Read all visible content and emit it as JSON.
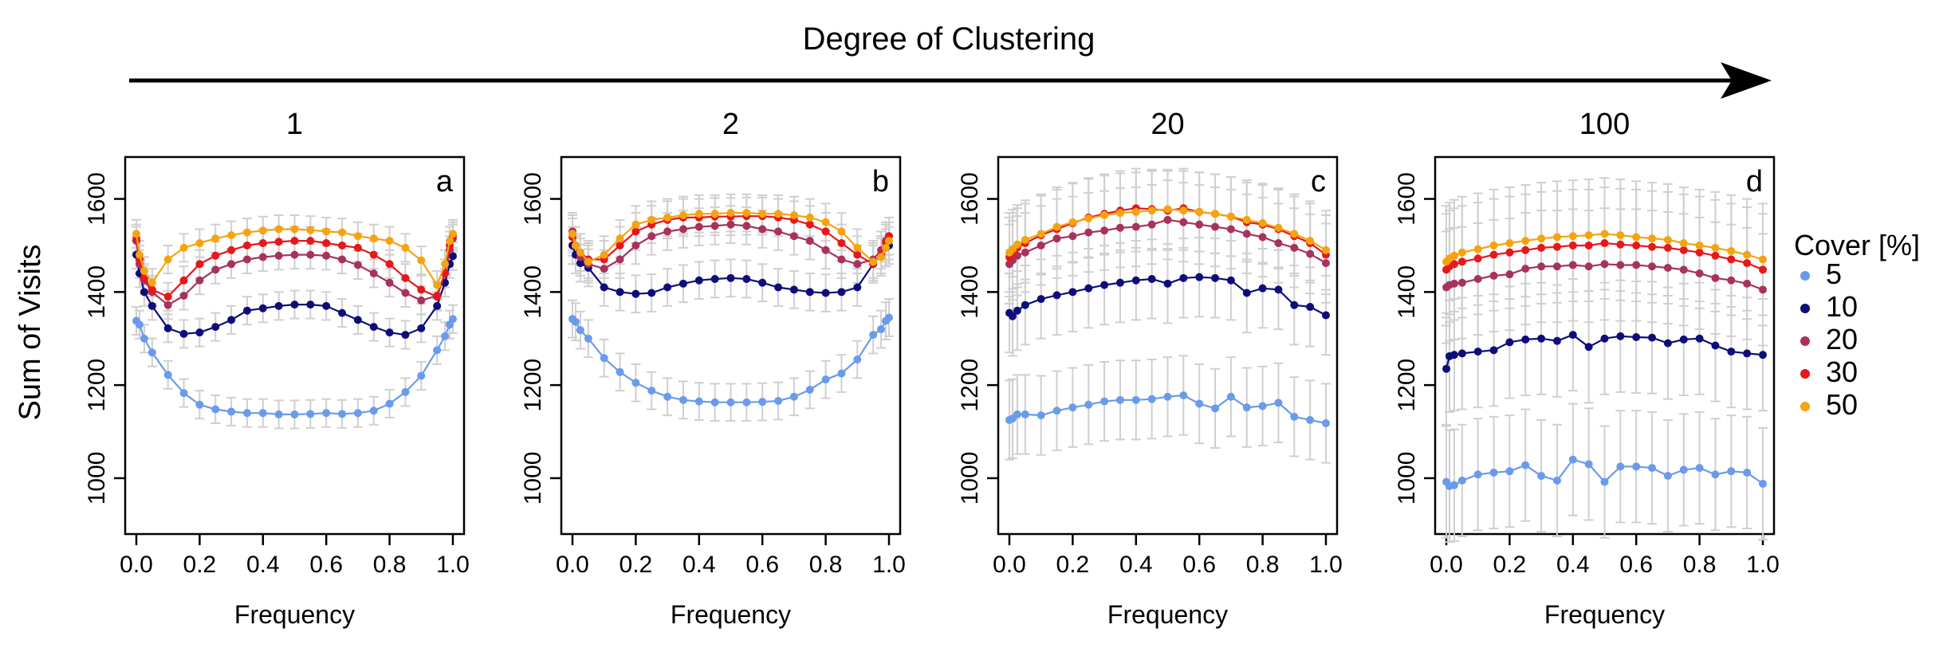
{
  "header": {
    "arrow_label": "Degree of Clustering"
  },
  "legend": {
    "title": "Cover [%]",
    "items": [
      {
        "label": "5",
        "color": "#6a9bea"
      },
      {
        "label": "10",
        "color": "#0d0d7a"
      },
      {
        "label": "20",
        "color": "#a8325e"
      },
      {
        "label": "30",
        "color": "#e8171b"
      },
      {
        "label": "50",
        "color": "#f5a30f"
      }
    ]
  },
  "chart_data": [
    {
      "type": "line",
      "panel_title": "1",
      "panel_letter": "a",
      "xlabel": "Frequency",
      "ylabel": "Sum of Visits",
      "xlim": [
        0,
        1
      ],
      "ylim": [
        880,
        1690
      ],
      "xticks": [
        0.0,
        0.2,
        0.4,
        0.6,
        0.8,
        1.0
      ],
      "yticks": [
        1000,
        1200,
        1400,
        1600
      ],
      "x": [
        0.0,
        0.01,
        0.025,
        0.05,
        0.1,
        0.15,
        0.2,
        0.25,
        0.3,
        0.35,
        0.4,
        0.45,
        0.5,
        0.55,
        0.6,
        0.65,
        0.7,
        0.75,
        0.8,
        0.85,
        0.9,
        0.95,
        0.975,
        0.99,
        1.0
      ],
      "error": 30,
      "series": [
        {
          "name": "5",
          "color": "#6a9bea",
          "values": [
            1338,
            1330,
            1300,
            1270,
            1222,
            1183,
            1158,
            1148,
            1143,
            1140,
            1140,
            1137,
            1137,
            1138,
            1140,
            1138,
            1140,
            1145,
            1160,
            1185,
            1220,
            1275,
            1305,
            1330,
            1342
          ]
        },
        {
          "name": "10",
          "color": "#0d0d7a",
          "values": [
            1480,
            1440,
            1400,
            1370,
            1322,
            1310,
            1313,
            1325,
            1340,
            1360,
            1365,
            1370,
            1373,
            1373,
            1370,
            1355,
            1340,
            1325,
            1313,
            1308,
            1322,
            1370,
            1420,
            1460,
            1477
          ]
        },
        {
          "name": "20",
          "color": "#a8325e",
          "values": [
            1510,
            1460,
            1425,
            1400,
            1372,
            1392,
            1425,
            1448,
            1460,
            1470,
            1475,
            1478,
            1480,
            1480,
            1478,
            1470,
            1458,
            1440,
            1420,
            1398,
            1382,
            1392,
            1440,
            1490,
            1515
          ]
        },
        {
          "name": "30",
          "color": "#e8171b",
          "values": [
            1515,
            1470,
            1430,
            1405,
            1390,
            1425,
            1460,
            1478,
            1490,
            1500,
            1505,
            1508,
            1510,
            1510,
            1505,
            1500,
            1495,
            1480,
            1460,
            1430,
            1405,
            1390,
            1440,
            1500,
            1520
          ]
        },
        {
          "name": "50",
          "color": "#f5a30f",
          "values": [
            1525,
            1480,
            1445,
            1420,
            1470,
            1495,
            1505,
            1515,
            1522,
            1528,
            1532,
            1535,
            1535,
            1533,
            1530,
            1528,
            1520,
            1515,
            1510,
            1495,
            1468,
            1415,
            1460,
            1510,
            1525
          ]
        }
      ]
    },
    {
      "type": "line",
      "panel_title": "2",
      "panel_letter": "b",
      "xlabel": "Frequency",
      "ylabel": "",
      "xlim": [
        0,
        1
      ],
      "ylim": [
        880,
        1690
      ],
      "xticks": [
        0.0,
        0.2,
        0.4,
        0.6,
        0.8,
        1.0
      ],
      "yticks": [
        1000,
        1200,
        1400,
        1600
      ],
      "x": [
        0.0,
        0.01,
        0.025,
        0.05,
        0.1,
        0.15,
        0.2,
        0.25,
        0.3,
        0.35,
        0.4,
        0.45,
        0.5,
        0.55,
        0.6,
        0.65,
        0.7,
        0.75,
        0.8,
        0.85,
        0.9,
        0.95,
        0.975,
        0.99,
        1.0
      ],
      "error": 40,
      "series": [
        {
          "name": "5",
          "color": "#6a9bea",
          "values": [
            1342,
            1336,
            1318,
            1300,
            1258,
            1228,
            1205,
            1188,
            1175,
            1168,
            1165,
            1163,
            1163,
            1163,
            1164,
            1166,
            1175,
            1190,
            1212,
            1225,
            1255,
            1308,
            1320,
            1338,
            1345
          ]
        },
        {
          "name": "10",
          "color": "#0d0d7a",
          "values": [
            1500,
            1480,
            1462,
            1452,
            1410,
            1400,
            1396,
            1398,
            1410,
            1418,
            1425,
            1428,
            1430,
            1428,
            1420,
            1410,
            1405,
            1400,
            1398,
            1400,
            1410,
            1460,
            1480,
            1495,
            1500
          ]
        },
        {
          "name": "20",
          "color": "#a8325e",
          "values": [
            1530,
            1500,
            1475,
            1460,
            1450,
            1470,
            1500,
            1520,
            1530,
            1535,
            1540,
            1542,
            1545,
            1542,
            1535,
            1530,
            1520,
            1510,
            1490,
            1470,
            1460,
            1470,
            1490,
            1510,
            1520
          ]
        },
        {
          "name": "30",
          "color": "#e8171b",
          "values": [
            1518,
            1500,
            1485,
            1470,
            1470,
            1500,
            1530,
            1545,
            1555,
            1560,
            1560,
            1562,
            1562,
            1563,
            1563,
            1560,
            1555,
            1545,
            1530,
            1505,
            1480,
            1460,
            1480,
            1505,
            1520
          ]
        },
        {
          "name": "50",
          "color": "#f5a30f",
          "values": [
            1525,
            1500,
            1485,
            1465,
            1480,
            1515,
            1545,
            1555,
            1560,
            1565,
            1568,
            1568,
            1570,
            1570,
            1568,
            1568,
            1565,
            1560,
            1550,
            1530,
            1495,
            1465,
            1475,
            1495,
            1510
          ]
        }
      ]
    },
    {
      "type": "line",
      "panel_title": "20",
      "panel_letter": "c",
      "xlabel": "Frequency",
      "ylabel": "",
      "xlim": [
        0,
        1
      ],
      "ylim": [
        880,
        1690
      ],
      "xticks": [
        0.0,
        0.2,
        0.4,
        0.6,
        0.8,
        1.0
      ],
      "yticks": [
        1000,
        1200,
        1400,
        1600
      ],
      "x": [
        0.0,
        0.01,
        0.025,
        0.05,
        0.1,
        0.15,
        0.2,
        0.25,
        0.3,
        0.35,
        0.4,
        0.45,
        0.5,
        0.55,
        0.6,
        0.65,
        0.7,
        0.75,
        0.8,
        0.85,
        0.9,
        0.95,
        1.0
      ],
      "error": 85,
      "series": [
        {
          "name": "5",
          "color": "#6a9bea",
          "values": [
            1125,
            1128,
            1137,
            1137,
            1135,
            1145,
            1152,
            1158,
            1165,
            1168,
            1168,
            1170,
            1175,
            1178,
            1160,
            1150,
            1175,
            1152,
            1155,
            1162,
            1132,
            1125,
            1118
          ]
        },
        {
          "name": "10",
          "color": "#0d0d7a",
          "values": [
            1355,
            1348,
            1360,
            1372,
            1385,
            1393,
            1400,
            1408,
            1415,
            1420,
            1425,
            1428,
            1418,
            1430,
            1432,
            1430,
            1425,
            1398,
            1408,
            1405,
            1372,
            1368,
            1350
          ]
        },
        {
          "name": "20",
          "color": "#a8325e",
          "values": [
            1460,
            1468,
            1478,
            1485,
            1500,
            1515,
            1520,
            1528,
            1532,
            1538,
            1540,
            1545,
            1555,
            1550,
            1545,
            1540,
            1535,
            1525,
            1518,
            1505,
            1495,
            1482,
            1462
          ]
        },
        {
          "name": "30",
          "color": "#e8171b",
          "values": [
            1475,
            1485,
            1495,
            1505,
            1522,
            1535,
            1548,
            1560,
            1568,
            1575,
            1580,
            1578,
            1575,
            1580,
            1572,
            1568,
            1562,
            1550,
            1545,
            1535,
            1520,
            1505,
            1480
          ]
        },
        {
          "name": "50",
          "color": "#f5a30f",
          "values": [
            1485,
            1492,
            1502,
            1512,
            1525,
            1540,
            1550,
            1558,
            1565,
            1570,
            1572,
            1575,
            1578,
            1575,
            1572,
            1568,
            1562,
            1555,
            1548,
            1538,
            1525,
            1510,
            1490
          ]
        }
      ]
    },
    {
      "type": "line",
      "panel_title": "100",
      "panel_letter": "d",
      "xlabel": "Frequency",
      "ylabel": "",
      "xlim": [
        0,
        1
      ],
      "ylim": [
        880,
        1690
      ],
      "xticks": [
        0.0,
        0.2,
        0.4,
        0.6,
        0.8,
        1.0
      ],
      "yticks": [
        1000,
        1200,
        1400,
        1600
      ],
      "x": [
        0.0,
        0.01,
        0.025,
        0.05,
        0.1,
        0.15,
        0.2,
        0.25,
        0.3,
        0.35,
        0.4,
        0.45,
        0.5,
        0.55,
        0.6,
        0.65,
        0.7,
        0.75,
        0.8,
        0.85,
        0.9,
        0.95,
        1.0
      ],
      "error": 120,
      "series": [
        {
          "name": "5",
          "color": "#6a9bea",
          "values": [
            992,
            983,
            985,
            995,
            1008,
            1012,
            1015,
            1028,
            1005,
            995,
            1040,
            1030,
            992,
            1025,
            1025,
            1022,
            1005,
            1018,
            1022,
            1008,
            1015,
            1012,
            988
          ]
        },
        {
          "name": "10",
          "color": "#0d0d7a",
          "values": [
            1235,
            1262,
            1265,
            1268,
            1272,
            1275,
            1292,
            1298,
            1300,
            1295,
            1308,
            1282,
            1300,
            1305,
            1303,
            1302,
            1290,
            1298,
            1300,
            1285,
            1272,
            1268,
            1265
          ]
        },
        {
          "name": "20",
          "color": "#a8325e",
          "values": [
            1410,
            1415,
            1418,
            1420,
            1428,
            1435,
            1438,
            1450,
            1455,
            1455,
            1458,
            1455,
            1460,
            1458,
            1458,
            1455,
            1452,
            1448,
            1440,
            1430,
            1425,
            1418,
            1405
          ]
        },
        {
          "name": "30",
          "color": "#e8171b",
          "values": [
            1448,
            1455,
            1460,
            1465,
            1472,
            1480,
            1485,
            1490,
            1495,
            1497,
            1500,
            1500,
            1505,
            1502,
            1500,
            1497,
            1495,
            1490,
            1485,
            1478,
            1470,
            1462,
            1448
          ]
        },
        {
          "name": "50",
          "color": "#f5a30f",
          "values": [
            1465,
            1472,
            1478,
            1485,
            1492,
            1500,
            1505,
            1510,
            1515,
            1518,
            1520,
            1522,
            1525,
            1522,
            1518,
            1515,
            1512,
            1505,
            1500,
            1495,
            1488,
            1480,
            1470
          ]
        }
      ]
    }
  ]
}
